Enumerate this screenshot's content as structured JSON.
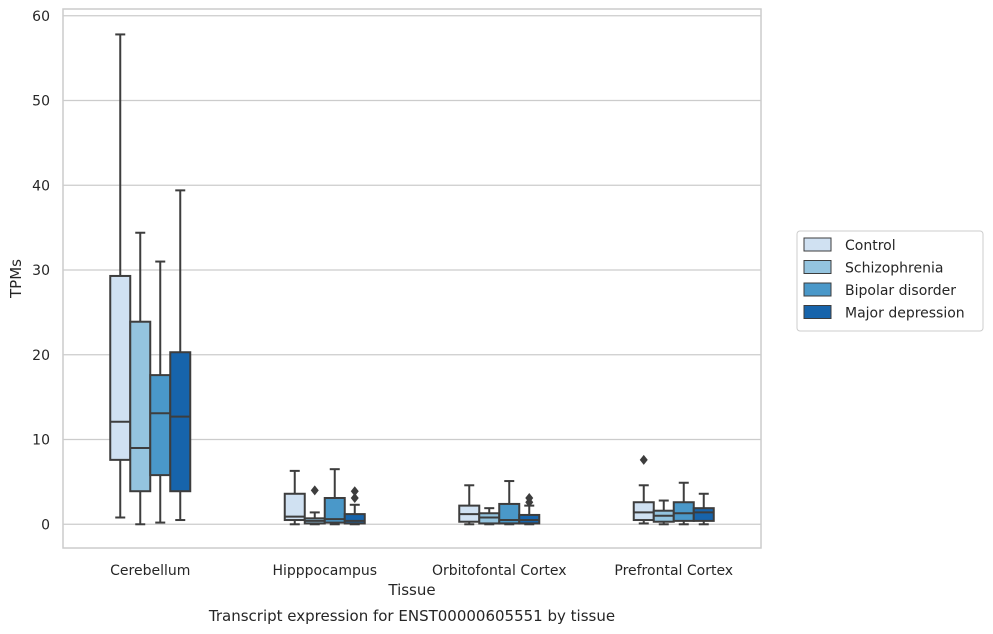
{
  "chart_data": {
    "type": "box",
    "caption": "Transcript expression for ENST00000605551 by tissue",
    "xlabel": "Tissue",
    "ylabel": "TPMs",
    "ylim": [
      -2.8,
      60.8
    ],
    "yticks": [
      0,
      10,
      20,
      30,
      40,
      50,
      60
    ],
    "grid": "horizontal",
    "legend_position": "right",
    "categories": [
      "Cerebellum",
      "Hipppocampus",
      "Orbitofontal Cortex",
      "Prefrontal Cortex"
    ],
    "series": [
      {
        "name": "Control",
        "color": "#d0e1f2",
        "boxes": [
          {
            "whislo": 0.8,
            "q1": 7.6,
            "med": 12.1,
            "q3": 29.3,
            "whishi": 57.8,
            "fliers": []
          },
          {
            "whislo": 0.0,
            "q1": 0.5,
            "med": 0.9,
            "q3": 3.6,
            "whishi": 6.3,
            "fliers": []
          },
          {
            "whislo": 0.0,
            "q1": 0.3,
            "med": 1.2,
            "q3": 2.2,
            "whishi": 4.6,
            "fliers": []
          },
          {
            "whislo": 0.1,
            "q1": 0.5,
            "med": 1.4,
            "q3": 2.6,
            "whishi": 4.6,
            "fliers": [
              7.6
            ]
          }
        ]
      },
      {
        "name": "Schizophrenia",
        "color": "#94c4df",
        "boxes": [
          {
            "whislo": 0.0,
            "q1": 3.9,
            "med": 9.0,
            "q3": 23.9,
            "whishi": 34.4,
            "fliers": []
          },
          {
            "whislo": 0.0,
            "q1": 0.1,
            "med": 0.4,
            "q3": 0.7,
            "whishi": 1.4,
            "fliers": [
              4.0
            ]
          },
          {
            "whislo": 0.0,
            "q1": 0.1,
            "med": 0.8,
            "q3": 1.3,
            "whishi": 1.9,
            "fliers": []
          },
          {
            "whislo": 0.0,
            "q1": 0.3,
            "med": 1.0,
            "q3": 1.6,
            "whishi": 2.8,
            "fliers": []
          }
        ]
      },
      {
        "name": "Bipolar disorder",
        "color": "#4a98c9",
        "boxes": [
          {
            "whislo": 0.2,
            "q1": 5.8,
            "med": 13.1,
            "q3": 17.6,
            "whishi": 31.0,
            "fliers": []
          },
          {
            "whislo": 0.0,
            "q1": 0.2,
            "med": 0.6,
            "q3": 3.1,
            "whishi": 6.5,
            "fliers": []
          },
          {
            "whislo": 0.0,
            "q1": 0.1,
            "med": 0.5,
            "q3": 2.4,
            "whishi": 5.1,
            "fliers": []
          },
          {
            "whislo": 0.0,
            "q1": 0.4,
            "med": 1.3,
            "q3": 2.6,
            "whishi": 4.9,
            "fliers": []
          }
        ]
      },
      {
        "name": "Major depression",
        "color": "#1764ab",
        "boxes": [
          {
            "whislo": 0.5,
            "q1": 3.9,
            "med": 12.7,
            "q3": 20.3,
            "whishi": 39.4,
            "fliers": []
          },
          {
            "whislo": 0.0,
            "q1": 0.1,
            "med": 0.4,
            "q3": 1.2,
            "whishi": 2.3,
            "fliers": [
              3.1,
              3.9
            ]
          },
          {
            "whislo": 0.0,
            "q1": 0.1,
            "med": 0.5,
            "q3": 1.1,
            "whishi": 2.2,
            "fliers": [
              2.6,
              3.1
            ]
          },
          {
            "whislo": 0.0,
            "q1": 0.4,
            "med": 1.4,
            "q3": 1.9,
            "whishi": 3.6,
            "fliers": []
          }
        ]
      }
    ]
  }
}
